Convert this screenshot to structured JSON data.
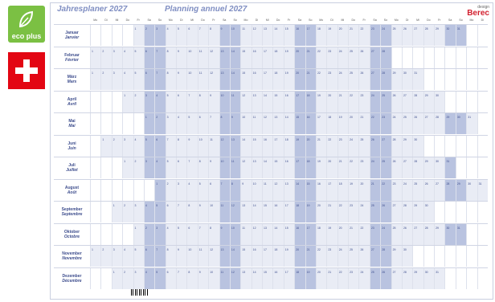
{
  "badges": {
    "eco_label": "eco plus"
  },
  "titles": {
    "de": "Jahresplaner 2027",
    "fr": "Planning annuel 2027"
  },
  "brand": {
    "design": "design",
    "name": "Berec"
  },
  "weekdays": [
    "Mo",
    "Di",
    "Mi",
    "Do",
    "Fr",
    "Sa",
    "So"
  ],
  "months": [
    {
      "de": "Januar",
      "fr": "Janvier",
      "offset": 4,
      "days": 31
    },
    {
      "de": "Februar",
      "fr": "Février",
      "offset": 0,
      "days": 28
    },
    {
      "de": "März",
      "fr": "Mars",
      "offset": 0,
      "days": 31
    },
    {
      "de": "April",
      "fr": "Avril",
      "offset": 3,
      "days": 30
    },
    {
      "de": "Mai",
      "fr": "Mai",
      "offset": 5,
      "days": 31
    },
    {
      "de": "Juni",
      "fr": "Juin",
      "offset": 1,
      "days": 30
    },
    {
      "de": "Juli",
      "fr": "Juillet",
      "offset": 3,
      "days": 31
    },
    {
      "de": "August",
      "fr": "Août",
      "offset": 6,
      "days": 31
    },
    {
      "de": "September",
      "fr": "Septembre",
      "offset": 2,
      "days": 30
    },
    {
      "de": "Oktober",
      "fr": "Octobre",
      "offset": 4,
      "days": 31
    },
    {
      "de": "November",
      "fr": "Novembre",
      "offset": 0,
      "days": 30
    },
    {
      "de": "Dezember",
      "fr": "Décembre",
      "offset": 2,
      "days": 31
    }
  ],
  "colors": {
    "weekday": "#e9ecf5",
    "weekend": "#b9c3e0",
    "accent": "#3c4c8c"
  }
}
